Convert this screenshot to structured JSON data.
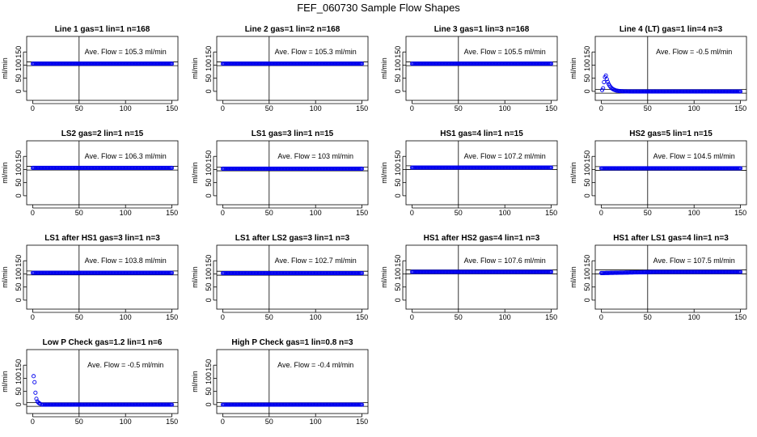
{
  "title": "FEF_060730  Sample Flow Shapes",
  "colors": {
    "point": "#0000ee",
    "axis": "#000000",
    "background": "#ffffff"
  },
  "chart_data": [
    {
      "type": "scatter",
      "title": "Line 1 gas=1 lin=1 n=168",
      "ylabel": "ml/min",
      "xlim": [
        0,
        150
      ],
      "ylim": [
        -25,
        200
      ],
      "xticks": [
        "0",
        "50",
        "100",
        "150"
      ],
      "yticks": [
        "0",
        "50",
        "100",
        "150"
      ],
      "hlines": [
        98,
        112
      ],
      "vline": 50,
      "annotation": "Ave. Flow =  105.3  ml/min",
      "profile": "flat",
      "series": [
        {
          "name": "flow",
          "x_range": [
            0,
            150
          ],
          "y": 105.3
        }
      ]
    },
    {
      "type": "scatter",
      "title": "Line 2 gas=1 lin=2 n=168",
      "ylabel": "ml/min",
      "xlim": [
        0,
        150
      ],
      "ylim": [
        -25,
        200
      ],
      "xticks": [
        "0",
        "50",
        "100",
        "150"
      ],
      "yticks": [
        "0",
        "50",
        "100",
        "150"
      ],
      "hlines": [
        98,
        112
      ],
      "vline": 50,
      "annotation": "Ave. Flow =  105.3  ml/min",
      "profile": "flat",
      "series": [
        {
          "name": "flow",
          "x_range": [
            0,
            150
          ],
          "y": 105.3
        }
      ]
    },
    {
      "type": "scatter",
      "title": "Line 3 gas=1 lin=3 n=168",
      "ylabel": "ml/min",
      "xlim": [
        0,
        150
      ],
      "ylim": [
        -25,
        200
      ],
      "xticks": [
        "0",
        "50",
        "100",
        "150"
      ],
      "yticks": [
        "0",
        "50",
        "100",
        "150"
      ],
      "hlines": [
        98,
        112
      ],
      "vline": 50,
      "annotation": "Ave. Flow =  105.5  ml/min",
      "profile": "flat",
      "series": [
        {
          "name": "flow",
          "x_range": [
            0,
            150
          ],
          "y": 105.5
        }
      ]
    },
    {
      "type": "scatter",
      "title": "Line 4 (LT) gas=1 lin=4 n=3",
      "ylabel": "ml/min",
      "xlim": [
        0,
        150
      ],
      "ylim": [
        -25,
        200
      ],
      "xticks": [
        "0",
        "50",
        "100",
        "150"
      ],
      "yticks": [
        "0",
        "50",
        "100",
        "150"
      ],
      "hlines": [
        -7,
        7
      ],
      "vline": 50,
      "annotation": "Ave. Flow =  -0.5  ml/min",
      "profile": "decay",
      "series": [
        {
          "name": "flow",
          "x_range": [
            0,
            150
          ],
          "y": -0.5,
          "peak_x": 5,
          "peak_y": 60
        }
      ]
    },
    {
      "type": "scatter",
      "title": "LS2 gas=2 lin=1 n=15",
      "ylabel": "ml/min",
      "xlim": [
        0,
        150
      ],
      "ylim": [
        -25,
        200
      ],
      "xticks": [
        "0",
        "50",
        "100",
        "150"
      ],
      "yticks": [
        "0",
        "50",
        "100",
        "150"
      ],
      "hlines": [
        98,
        112
      ],
      "vline": 50,
      "annotation": "Ave. Flow =  106.3  ml/min",
      "profile": "flat",
      "series": [
        {
          "name": "flow",
          "x_range": [
            0,
            150
          ],
          "y": 106.3
        }
      ]
    },
    {
      "type": "scatter",
      "title": "LS1 gas=3 lin=1 n=15",
      "ylabel": "ml/min",
      "xlim": [
        0,
        150
      ],
      "ylim": [
        -25,
        200
      ],
      "xticks": [
        "0",
        "50",
        "100",
        "150"
      ],
      "yticks": [
        "0",
        "50",
        "100",
        "150"
      ],
      "hlines": [
        95,
        109
      ],
      "vline": 50,
      "annotation": "Ave. Flow =  103  ml/min",
      "profile": "flat",
      "series": [
        {
          "name": "flow",
          "x_range": [
            0,
            150
          ],
          "y": 103
        }
      ]
    },
    {
      "type": "scatter",
      "title": "HS1 gas=4 lin=1 n=15",
      "ylabel": "ml/min",
      "xlim": [
        0,
        150
      ],
      "ylim": [
        -25,
        200
      ],
      "xticks": [
        "0",
        "50",
        "100",
        "150"
      ],
      "yticks": [
        "0",
        "50",
        "100",
        "150"
      ],
      "hlines": [
        100,
        114
      ],
      "vline": 50,
      "annotation": "Ave. Flow =  107.2  ml/min",
      "profile": "flat",
      "series": [
        {
          "name": "flow",
          "x_range": [
            0,
            150
          ],
          "y": 107.2
        }
      ]
    },
    {
      "type": "scatter",
      "title": "HS2 gas=5 lin=1 n=15",
      "ylabel": "ml/min",
      "xlim": [
        0,
        150
      ],
      "ylim": [
        -25,
        200
      ],
      "xticks": [
        "0",
        "50",
        "100",
        "150"
      ],
      "yticks": [
        "0",
        "50",
        "100",
        "150"
      ],
      "hlines": [
        97,
        111
      ],
      "vline": 50,
      "annotation": "Ave. Flow =  104.5  ml/min",
      "profile": "flat",
      "series": [
        {
          "name": "flow",
          "x_range": [
            0,
            150
          ],
          "y": 104.5
        }
      ]
    },
    {
      "type": "scatter",
      "title": "LS1 after HS1 gas=3 lin=1 n=3",
      "ylabel": "ml/min",
      "xlim": [
        0,
        150
      ],
      "ylim": [
        -25,
        200
      ],
      "xticks": [
        "0",
        "50",
        "100",
        "150"
      ],
      "yticks": [
        "0",
        "50",
        "100",
        "150"
      ],
      "hlines": [
        96,
        111
      ],
      "vline": 50,
      "annotation": "Ave. Flow =  103.8  ml/min",
      "profile": "flat",
      "series": [
        {
          "name": "flow",
          "x_range": [
            0,
            150
          ],
          "y": 103.8
        }
      ]
    },
    {
      "type": "scatter",
      "title": "LS1 after LS2 gas=3 lin=1 n=3",
      "ylabel": "ml/min",
      "xlim": [
        0,
        150
      ],
      "ylim": [
        -25,
        200
      ],
      "xticks": [
        "0",
        "50",
        "100",
        "150"
      ],
      "yticks": [
        "0",
        "50",
        "100",
        "150"
      ],
      "hlines": [
        95,
        110
      ],
      "vline": 50,
      "annotation": "Ave. Flow =  102.7  ml/min",
      "profile": "flat",
      "series": [
        {
          "name": "flow",
          "x_range": [
            0,
            150
          ],
          "y": 102.7
        }
      ]
    },
    {
      "type": "scatter",
      "title": "HS1 after HS2 gas=4 lin=1 n=3",
      "ylabel": "ml/min",
      "xlim": [
        0,
        150
      ],
      "ylim": [
        -25,
        200
      ],
      "xticks": [
        "0",
        "50",
        "100",
        "150"
      ],
      "yticks": [
        "0",
        "50",
        "100",
        "150"
      ],
      "hlines": [
        100,
        115
      ],
      "vline": 50,
      "annotation": "Ave. Flow =  107.6  ml/min",
      "profile": "flat",
      "series": [
        {
          "name": "flow",
          "x_range": [
            0,
            150
          ],
          "y": 107.6
        }
      ]
    },
    {
      "type": "scatter",
      "title": "HS1 after LS1 gas=4 lin=1 n=3",
      "ylabel": "ml/min",
      "xlim": [
        0,
        150
      ],
      "ylim": [
        -25,
        200
      ],
      "xticks": [
        "0",
        "50",
        "100",
        "150"
      ],
      "yticks": [
        "0",
        "50",
        "100",
        "150"
      ],
      "hlines": [
        100,
        115
      ],
      "vline": 50,
      "annotation": "Ave. Flow =  107.5  ml/min",
      "profile": "rising",
      "series": [
        {
          "name": "flow",
          "x_range": [
            0,
            150
          ],
          "y": 107.5,
          "start_y": 103
        }
      ]
    },
    {
      "type": "scatter",
      "title": "Low P Check gas=1.2 lin=1 n=6",
      "ylabel": "ml/min",
      "xlim": [
        0,
        150
      ],
      "ylim": [
        -25,
        200
      ],
      "xticks": [
        "0",
        "50",
        "100",
        "150"
      ],
      "yticks": [
        "0",
        "50",
        "100",
        "150"
      ],
      "hlines": [
        -7,
        7
      ],
      "vline": 50,
      "annotation": "Ave. Flow =  -0.5  ml/min",
      "profile": "decay_sparse",
      "series": [
        {
          "name": "flow",
          "x_range": [
            0,
            150
          ],
          "y": -0.5,
          "points": [
            [
              1,
              108
            ],
            [
              2,
              85
            ],
            [
              3,
              45
            ],
            [
              4,
              22
            ],
            [
              5,
              12
            ],
            [
              6,
              8
            ],
            [
              7,
              5
            ],
            [
              8,
              3
            ]
          ]
        }
      ]
    },
    {
      "type": "scatter",
      "title": "High P Check gas=1 lin=0.8 n=3",
      "ylabel": "ml/min",
      "xlim": [
        0,
        150
      ],
      "ylim": [
        -25,
        200
      ],
      "xticks": [
        "0",
        "50",
        "100",
        "150"
      ],
      "yticks": [
        "0",
        "50",
        "100",
        "150"
      ],
      "hlines": [
        -7,
        7
      ],
      "vline": 50,
      "annotation": "Ave. Flow =  -0.4  ml/min",
      "profile": "flat",
      "series": [
        {
          "name": "flow",
          "x_range": [
            0,
            150
          ],
          "y": -0.4
        }
      ]
    }
  ]
}
